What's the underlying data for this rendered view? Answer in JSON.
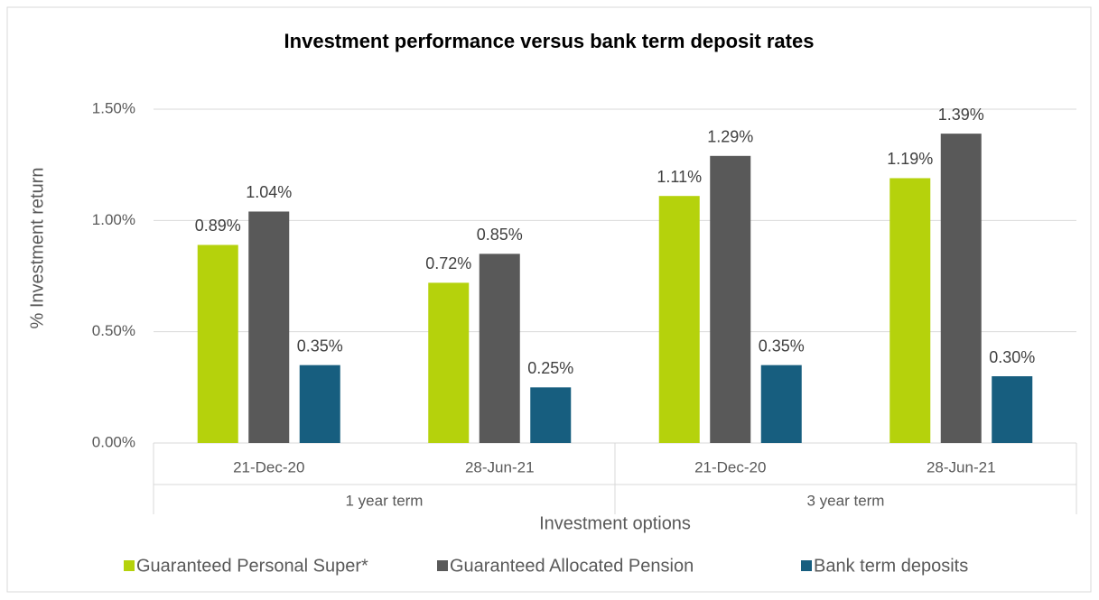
{
  "chart_data": {
    "type": "bar",
    "title": "Investment performance versus bank term deposit rates",
    "y_label": "% Investment return",
    "x_label": "Investment options",
    "category_groups": [
      {
        "label": "1 year term",
        "categories": [
          "21-Dec-20",
          "28-Jun-21"
        ]
      },
      {
        "label": "3 year term",
        "categories": [
          "21-Dec-20",
          "28-Jun-21"
        ]
      }
    ],
    "series": [
      {
        "name": "Guaranteed Personal Super*",
        "color": "#b5d20c",
        "values": [
          0.89,
          0.72,
          1.11,
          1.19
        ],
        "value_labels": [
          "0.89%",
          "0.72%",
          "1.11%",
          "1.19%"
        ]
      },
      {
        "name": "Guaranteed Allocated Pension",
        "color": "#595959",
        "values": [
          1.04,
          0.85,
          1.29,
          1.39
        ],
        "value_labels": [
          "1.04%",
          "0.85%",
          "1.29%",
          "1.39%"
        ]
      },
      {
        "name": "Bank term deposits",
        "color": "#175e7f",
        "values": [
          0.35,
          0.25,
          0.35,
          0.3
        ],
        "value_labels": [
          "0.35%",
          "0.25%",
          "0.35%",
          "0.30%"
        ]
      }
    ],
    "ylim": [
      0,
      1.5
    ],
    "yticks": [
      {
        "value": 0,
        "label": "0.00%"
      },
      {
        "value": 0.5,
        "label": "0.50%"
      },
      {
        "value": 1,
        "label": "1.00%"
      },
      {
        "value": 1.5,
        "label": "1.50%"
      }
    ],
    "grid": true,
    "legend": "bottom"
  }
}
